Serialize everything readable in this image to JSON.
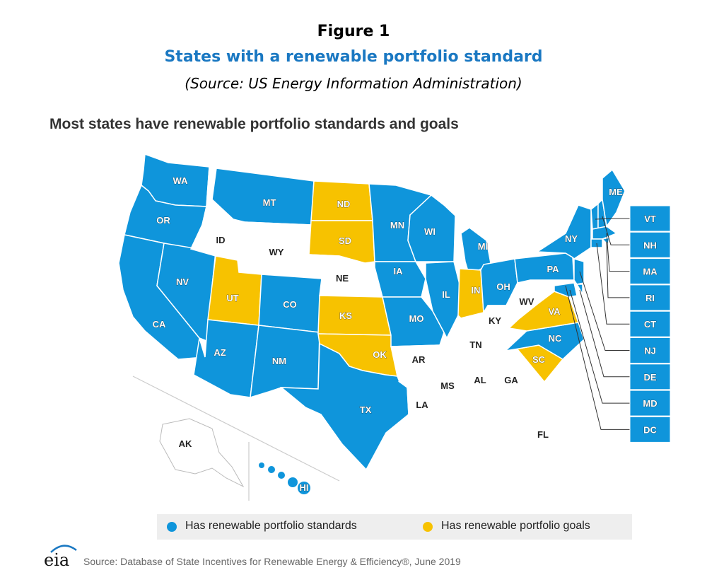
{
  "figure": {
    "label": "Figure 1",
    "title": "States with a renewable portfolio standard",
    "source": "(Source: US Energy Information Administration)"
  },
  "map": {
    "heading": "Most states have renewable portfolio standards and goals",
    "colors": {
      "standards": "#0f95db",
      "goals": "#f7c200",
      "none": "#ffffff",
      "box": "#0f95db"
    },
    "states": {
      "WA": "standards",
      "OR": "standards",
      "CA": "standards",
      "NV": "standards",
      "AZ": "standards",
      "MT": "standards",
      "CO": "standards",
      "NM": "standards",
      "TX": "standards",
      "MN": "standards",
      "IA": "standards",
      "MO": "standards",
      "WI": "standards",
      "IL": "standards",
      "MI": "standards",
      "OH": "standards",
      "PA": "standards",
      "NY": "standards",
      "ME": "standards",
      "NC": "standards",
      "HI": "standards",
      "VT": "standards",
      "NH": "standards",
      "MA": "standards",
      "RI": "standards",
      "CT": "standards",
      "NJ": "standards",
      "DE": "standards",
      "MD": "standards",
      "DC": "standards",
      "ND": "goals",
      "SD": "goals",
      "UT": "goals",
      "KS": "goals",
      "OK": "goals",
      "IN": "goals",
      "VA": "goals",
      "SC": "goals",
      "ID": "none",
      "WY": "none",
      "NE": "none",
      "AR": "none",
      "LA": "none",
      "MS": "none",
      "AL": "none",
      "GA": "none",
      "FL": "none",
      "TN": "none",
      "KY": "none",
      "WV": "none",
      "AK": "none"
    },
    "labels": {
      "WA": "WA",
      "OR": "OR",
      "CA": "CA",
      "NV": "NV",
      "ID": "ID",
      "MT": "MT",
      "WY": "WY",
      "UT": "UT",
      "AZ": "AZ",
      "CO": "CO",
      "NM": "NM",
      "ND": "ND",
      "SD": "SD",
      "NE": "NE",
      "KS": "KS",
      "OK": "OK",
      "TX": "TX",
      "MN": "MN",
      "IA": "IA",
      "MO": "MO",
      "AR": "AR",
      "LA": "LA",
      "WI": "WI",
      "IL": "IL",
      "MI": "MI",
      "IN": "IN",
      "OH": "OH",
      "KY": "KY",
      "TN": "TN",
      "MS": "MS",
      "AL": "AL",
      "GA": "GA",
      "FL": "FL",
      "SC": "SC",
      "NC": "NC",
      "VA": "VA",
      "WV": "WV",
      "PA": "PA",
      "NY": "NY",
      "ME": "ME",
      "AK": "AK",
      "HI": "HI"
    },
    "boxes": [
      "VT",
      "NH",
      "MA",
      "RI",
      "CT",
      "NJ",
      "DE",
      "MD",
      "DC"
    ]
  },
  "legend": {
    "standards_label": "Has renewable portfolio standards",
    "goals_label": "Has renewable portfolio goals"
  },
  "footer": {
    "logo": "eia",
    "source": "Source: Database of State Incentives for Renewable Energy & Efficiency®, June 2019"
  }
}
